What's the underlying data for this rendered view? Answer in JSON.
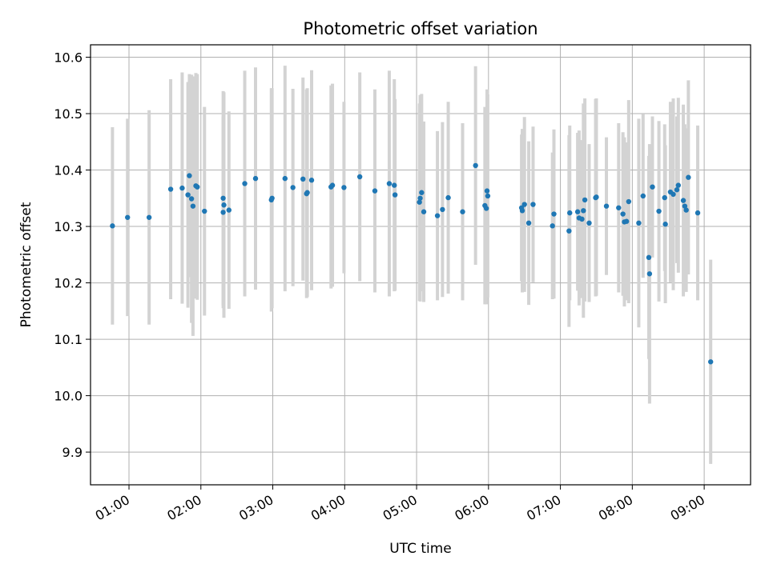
{
  "chart_data": {
    "type": "scatter",
    "title": "Photometric offset variation",
    "xlabel": "UTC time",
    "ylabel": "Photometric offset",
    "x_unit": "hours UTC",
    "xlim": [
      0.465,
      9.645
    ],
    "ylim": [
      9.842,
      10.622
    ],
    "x_ticks": [
      {
        "value": 1,
        "label": "01:00"
      },
      {
        "value": 2,
        "label": "02:00"
      },
      {
        "value": 3,
        "label": "03:00"
      },
      {
        "value": 4,
        "label": "04:00"
      },
      {
        "value": 5,
        "label": "05:00"
      },
      {
        "value": 6,
        "label": "06:00"
      },
      {
        "value": 7,
        "label": "07:00"
      },
      {
        "value": 8,
        "label": "08:00"
      },
      {
        "value": 9,
        "label": "09:00"
      }
    ],
    "y_ticks": [
      {
        "value": 9.9,
        "label": "9.9"
      },
      {
        "value": 10.0,
        "label": "10.0"
      },
      {
        "value": 10.1,
        "label": "10.1"
      },
      {
        "value": 10.2,
        "label": "10.2"
      },
      {
        "value": 10.3,
        "label": "10.3"
      },
      {
        "value": 10.4,
        "label": "10.4"
      },
      {
        "value": 10.5,
        "label": "10.5"
      },
      {
        "value": 10.6,
        "label": "10.6"
      }
    ],
    "grid": true,
    "marker_color": "#1f77b4",
    "errorbar_color": "#d3d3d3",
    "points": [
      [
        0.77,
        10.301,
        0.175
      ],
      [
        0.98,
        10.316,
        0.175
      ],
      [
        1.28,
        10.316,
        0.19
      ],
      [
        1.58,
        10.366,
        0.195
      ],
      [
        1.74,
        10.368,
        0.205
      ],
      [
        1.82,
        10.356,
        0.2
      ],
      [
        1.84,
        10.39,
        0.18
      ],
      [
        1.87,
        10.349,
        0.22
      ],
      [
        1.89,
        10.336,
        0.23
      ],
      [
        1.93,
        10.372,
        0.2
      ],
      [
        1.95,
        10.37,
        0.2
      ],
      [
        2.05,
        10.327,
        0.185
      ],
      [
        2.31,
        10.35,
        0.19
      ],
      [
        2.31,
        10.325,
        0.17
      ],
      [
        2.32,
        10.338,
        0.2
      ],
      [
        2.39,
        10.329,
        0.175
      ],
      [
        2.61,
        10.376,
        0.2
      ],
      [
        2.76,
        10.385,
        0.197
      ],
      [
        2.98,
        10.347,
        0.198
      ],
      [
        2.99,
        10.35,
        0.195
      ],
      [
        3.17,
        10.385,
        0.2
      ],
      [
        3.28,
        10.369,
        0.175
      ],
      [
        3.42,
        10.384,
        0.18
      ],
      [
        3.47,
        10.358,
        0.185
      ],
      [
        3.48,
        10.36,
        0.185
      ],
      [
        3.54,
        10.382,
        0.195
      ],
      [
        3.81,
        10.37,
        0.18
      ],
      [
        3.83,
        10.373,
        0.18
      ],
      [
        3.99,
        10.369,
        0.152
      ],
      [
        4.21,
        10.388,
        0.185
      ],
      [
        4.42,
        10.363,
        0.18
      ],
      [
        4.62,
        10.376,
        0.2
      ],
      [
        4.69,
        10.373,
        0.188
      ],
      [
        4.7,
        10.356,
        0.17
      ],
      [
        5.04,
        10.343,
        0.175
      ],
      [
        5.05,
        10.35,
        0.183
      ],
      [
        5.07,
        10.36,
        0.175
      ],
      [
        5.1,
        10.326,
        0.16
      ],
      [
        5.29,
        10.319,
        0.15
      ],
      [
        5.36,
        10.33,
        0.155
      ],
      [
        5.44,
        10.351,
        0.17
      ],
      [
        5.64,
        10.326,
        0.157
      ],
      [
        5.82,
        10.408,
        0.176
      ],
      [
        5.95,
        10.337,
        0.175
      ],
      [
        5.97,
        10.332,
        0.17
      ],
      [
        5.98,
        10.363,
        0.18
      ],
      [
        5.99,
        10.354,
        0.18
      ],
      [
        6.46,
        10.333,
        0.13
      ],
      [
        6.47,
        10.328,
        0.145
      ],
      [
        6.5,
        10.339,
        0.155
      ],
      [
        6.56,
        10.306,
        0.145
      ],
      [
        6.62,
        10.339,
        0.138
      ],
      [
        6.89,
        10.301,
        0.13
      ],
      [
        6.91,
        10.322,
        0.15
      ],
      [
        7.12,
        10.292,
        0.17
      ],
      [
        7.13,
        10.324,
        0.155
      ],
      [
        7.24,
        10.326,
        0.14
      ],
      [
        7.26,
        10.315,
        0.155
      ],
      [
        7.3,
        10.313,
        0.14
      ],
      [
        7.32,
        10.328,
        0.19
      ],
      [
        7.34,
        10.347,
        0.18
      ],
      [
        7.4,
        10.306,
        0.14
      ],
      [
        7.49,
        10.351,
        0.175
      ],
      [
        7.5,
        10.352,
        0.175
      ],
      [
        7.64,
        10.336,
        0.122
      ],
      [
        7.81,
        10.333,
        0.15
      ],
      [
        7.87,
        10.322,
        0.145
      ],
      [
        7.89,
        10.308,
        0.15
      ],
      [
        7.92,
        10.309,
        0.14
      ],
      [
        7.95,
        10.344,
        0.18
      ],
      [
        8.09,
        10.306,
        0.185
      ],
      [
        8.15,
        10.354,
        0.145
      ],
      [
        8.23,
        10.245,
        0.18
      ],
      [
        8.24,
        10.216,
        0.23
      ],
      [
        8.28,
        10.37,
        0.125
      ],
      [
        8.37,
        10.327,
        0.16
      ],
      [
        8.45,
        10.351,
        0.13
      ],
      [
        8.46,
        10.304,
        0.14
      ],
      [
        8.53,
        10.361,
        0.16
      ],
      [
        8.57,
        10.357,
        0.17
      ],
      [
        8.62,
        10.365,
        0.13
      ],
      [
        8.64,
        10.373,
        0.155
      ],
      [
        8.71,
        10.346,
        0.17
      ],
      [
        8.73,
        10.336,
        0.145
      ],
      [
        8.75,
        10.329,
        0.145
      ],
      [
        8.78,
        10.387,
        0.172
      ],
      [
        8.91,
        10.324,
        0.155
      ],
      [
        9.09,
        10.06,
        0.181
      ]
    ]
  }
}
